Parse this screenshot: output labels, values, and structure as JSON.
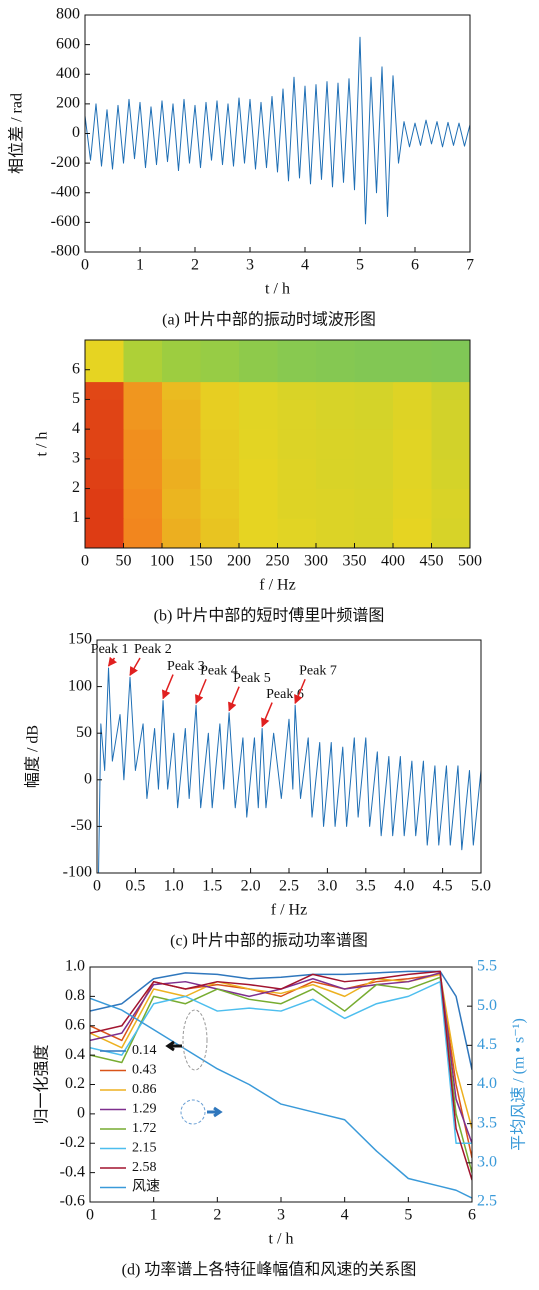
{
  "chart_data": [
    {
      "type": "line",
      "caption": "(a) 叶片中部的振动时域波形图",
      "xlabel": "t / h",
      "ylabel": "相位差 / rad",
      "color": "#1f6fb5",
      "x": [
        0,
        0.1,
        0.2,
        0.3,
        0.4,
        0.5,
        0.6,
        0.7,
        0.8,
        0.9,
        1,
        1.1,
        1.2,
        1.3,
        1.4,
        1.5,
        1.6,
        1.7,
        1.8,
        1.9,
        2,
        2.1,
        2.2,
        2.3,
        2.4,
        2.5,
        2.6,
        2.7,
        2.8,
        2.9,
        3,
        3.1,
        3.2,
        3.3,
        3.4,
        3.5,
        3.6,
        3.7,
        3.8,
        3.9,
        4,
        4.1,
        4.2,
        4.3,
        4.4,
        4.5,
        4.6,
        4.7,
        4.8,
        4.9,
        5,
        5.1,
        5.2,
        5.3,
        5.4,
        5.5,
        5.6,
        5.7,
        5.8,
        5.9,
        6,
        6.1,
        6.2,
        6.3,
        6.4,
        6.5,
        6.6,
        6.7,
        6.8,
        6.9,
        7
      ],
      "values": [
        120,
        -180,
        200,
        -220,
        160,
        -240,
        190,
        -200,
        230,
        -170,
        210,
        -230,
        180,
        -210,
        220,
        -190,
        200,
        -250,
        230,
        -200,
        190,
        -230,
        210,
        -180,
        220,
        -210,
        200,
        -220,
        240,
        -200,
        230,
        -240,
        210,
        -230,
        250,
        -260,
        300,
        -320,
        380,
        -300,
        320,
        -340,
        330,
        -310,
        350,
        -360,
        340,
        -330,
        370,
        -380,
        650,
        -610,
        380,
        -400,
        450,
        -560,
        390,
        -200,
        80,
        -90,
        70,
        -80,
        90,
        -70,
        80,
        -90,
        75,
        -80,
        70,
        -85,
        60
      ],
      "xlim": [
        0,
        7
      ],
      "ylim": [
        -800,
        800
      ],
      "xticks": [
        0,
        1,
        2,
        3,
        4,
        5,
        6,
        7
      ],
      "yticks": [
        -800,
        -600,
        -400,
        -200,
        0,
        200,
        400,
        600,
        800
      ]
    },
    {
      "type": "heatmap",
      "caption": "(b) 叶片中部的短时傅里叶频谱图",
      "xlabel": "f / Hz",
      "ylabel": "t / h",
      "xbins": [
        0,
        50,
        100,
        150,
        200,
        250,
        300,
        350,
        400,
        450,
        500
      ],
      "ybins": [
        0,
        1,
        2,
        3,
        4,
        5,
        5.6,
        7
      ],
      "z": [
        [
          0.95,
          0.75,
          0.62,
          0.55,
          0.5,
          0.48,
          0.46,
          0.45,
          0.5,
          0.44
        ],
        [
          0.95,
          0.74,
          0.6,
          0.54,
          0.5,
          0.47,
          0.46,
          0.45,
          0.49,
          0.45
        ],
        [
          0.94,
          0.72,
          0.62,
          0.53,
          0.5,
          0.47,
          0.45,
          0.44,
          0.48,
          0.43
        ],
        [
          0.93,
          0.72,
          0.6,
          0.53,
          0.49,
          0.46,
          0.45,
          0.44,
          0.48,
          0.42
        ],
        [
          0.93,
          0.7,
          0.6,
          0.52,
          0.48,
          0.46,
          0.44,
          0.43,
          0.47,
          0.42
        ],
        [
          0.92,
          0.7,
          0.58,
          0.52,
          0.48,
          0.45,
          0.44,
          0.43,
          0.47,
          0.41
        ],
        [
          0.5,
          0.28,
          0.22,
          0.2,
          0.17,
          0.15,
          0.14,
          0.13,
          0.13,
          0.12
        ]
      ],
      "colormap": [
        "#5cbf70",
        "#a6cf3a",
        "#e6d422",
        "#f2861e",
        "#d92a12"
      ],
      "xlim": [
        0,
        500
      ],
      "ylim": [
        0,
        7
      ],
      "xticks": [
        0,
        50,
        100,
        150,
        200,
        250,
        300,
        350,
        400,
        450,
        500
      ],
      "yticks": [
        1,
        2,
        3,
        4,
        5,
        6
      ]
    },
    {
      "type": "line",
      "caption": "(c) 叶片中部的振动功率谱图",
      "xlabel": "f / Hz",
      "ylabel": "幅度 / dB",
      "color": "#1f6fb5",
      "x": [
        0.02,
        0.05,
        0.1,
        0.15,
        0.2,
        0.3,
        0.35,
        0.43,
        0.5,
        0.6,
        0.65,
        0.75,
        0.8,
        0.86,
        0.92,
        1,
        1.05,
        1.15,
        1.2,
        1.29,
        1.35,
        1.45,
        1.5,
        1.6,
        1.65,
        1.72,
        1.8,
        1.9,
        1.95,
        2.05,
        2.1,
        2.15,
        2.2,
        2.3,
        2.4,
        2.5,
        2.55,
        2.58,
        2.65,
        2.75,
        2.8,
        2.9,
        2.95,
        3.05,
        3.1,
        3.2,
        3.25,
        3.35,
        3.4,
        3.5,
        3.55,
        3.65,
        3.7,
        3.8,
        3.85,
        3.95,
        4,
        4.1,
        4.15,
        4.25,
        4.3,
        4.4,
        4.45,
        4.55,
        4.6,
        4.7,
        4.75,
        4.85,
        4.9,
        5
      ],
      "values": [
        -100,
        60,
        10,
        120,
        20,
        70,
        0,
        110,
        10,
        60,
        -20,
        55,
        -10,
        85,
        -10,
        50,
        -30,
        55,
        -20,
        80,
        -30,
        50,
        -30,
        60,
        -10,
        72,
        -30,
        45,
        -40,
        45,
        -30,
        55,
        -30,
        50,
        -20,
        65,
        -10,
        80,
        -20,
        45,
        -40,
        40,
        -50,
        40,
        -50,
        35,
        -50,
        45,
        -40,
        45,
        -50,
        30,
        -60,
        25,
        -60,
        25,
        -60,
        20,
        -60,
        20,
        -70,
        15,
        -70,
        15,
        -70,
        15,
        -75,
        10,
        -70,
        10
      ],
      "annotations": [
        {
          "text": "Peak 1",
          "x": 0.15,
          "y": 120
        },
        {
          "text": "Peak 2",
          "x": 0.43,
          "y": 110
        },
        {
          "text": "Peak 3",
          "x": 0.86,
          "y": 85
        },
        {
          "text": "Peak 4",
          "x": 1.29,
          "y": 80
        },
        {
          "text": "Peak 5",
          "x": 1.72,
          "y": 72
        },
        {
          "text": "Peak 6",
          "x": 2.15,
          "y": 55
        },
        {
          "text": "Peak 7",
          "x": 2.58,
          "y": 80
        }
      ],
      "annotation_color": "#e02020",
      "xlim": [
        0,
        5
      ],
      "ylim": [
        -100,
        150
      ],
      "xticks": [
        0,
        0.5,
        {
          "value": 1,
          "label": "1.0"
        },
        1.5,
        {
          "value": 2,
          "label": "2.0"
        },
        2.5,
        {
          "value": 3,
          "label": "3.0"
        },
        3.5,
        {
          "value": 4,
          "label": "4.0"
        },
        4.5,
        {
          "value": 5,
          "label": "5.0"
        }
      ],
      "yticks": [
        -100,
        -50,
        0,
        50,
        100,
        150
      ]
    },
    {
      "type": "line",
      "caption": "(d) 功率谱上各特征峰幅值和风速的关系图",
      "xlabel": "t / h",
      "ylabel": "归一化强度",
      "y2label": "平均风速 / (m • s⁻¹)",
      "x": [
        0,
        0.5,
        1,
        1.5,
        2,
        2.5,
        3,
        3.5,
        4,
        4.5,
        5,
        5.5,
        5.75,
        6
      ],
      "series": [
        {
          "name": "0.14",
          "color": "#2f77bd",
          "values": [
            0.7,
            0.75,
            0.92,
            0.96,
            0.95,
            0.92,
            0.93,
            0.95,
            0.95,
            0.96,
            0.97,
            0.97,
            0.8,
            0.3
          ]
        },
        {
          "name": "0.43",
          "color": "#d95319",
          "values": [
            0.6,
            0.5,
            0.9,
            0.85,
            0.88,
            0.85,
            0.8,
            0.9,
            0.85,
            0.9,
            0.92,
            0.95,
            0.2,
            -0.3
          ]
        },
        {
          "name": "0.86",
          "color": "#edb120",
          "values": [
            0.55,
            0.45,
            0.85,
            0.8,
            0.9,
            0.85,
            0.82,
            0.88,
            0.8,
            0.92,
            0.9,
            0.95,
            0.3,
            -0.1
          ]
        },
        {
          "name": "1.29",
          "color": "#7e2f8e",
          "values": [
            0.5,
            0.55,
            0.88,
            0.9,
            0.85,
            0.8,
            0.85,
            0.92,
            0.85,
            0.88,
            0.9,
            0.96,
            0.1,
            -0.2
          ]
        },
        {
          "name": "1.72",
          "color": "#77ac30",
          "values": [
            0.4,
            0.35,
            0.8,
            0.75,
            0.85,
            0.78,
            0.75,
            0.85,
            0.7,
            0.88,
            0.85,
            0.93,
            0,
            -0.4
          ]
        },
        {
          "name": "2.15",
          "color": "#4dbeee",
          "values": [
            0.45,
            0.4,
            0.75,
            0.8,
            0.7,
            0.72,
            0.7,
            0.78,
            0.65,
            0.75,
            0.8,
            0.9,
            -0.2,
            -0.2
          ]
        },
        {
          "name": "2.58",
          "color": "#a2142f",
          "values": [
            0.55,
            0.6,
            0.9,
            0.85,
            0.9,
            0.88,
            0.85,
            0.95,
            0.9,
            0.92,
            0.95,
            0.97,
            -0.1,
            -0.45
          ]
        },
        {
          "name": "风速",
          "color": "#3a9ad9",
          "axis": "y2",
          "values": [
            5.1,
            4.95,
            4.7,
            4.45,
            4.2,
            4,
            3.75,
            3.65,
            3.55,
            3.15,
            2.8,
            2.7,
            2.65,
            2.55
          ]
        }
      ],
      "legend": "lower left",
      "xlim": [
        0,
        6
      ],
      "ylim": [
        -0.6,
        1
      ],
      "y2lim": [
        2.5,
        5.5
      ],
      "xticks": [
        0,
        1,
        2,
        3,
        4,
        5,
        6
      ],
      "yticks": [
        -0.6,
        -0.4,
        -0.2,
        0,
        0.2,
        0.4,
        0.6,
        0.8,
        {
          "value": 1,
          "label": "1.0"
        }
      ],
      "y2ticks": [
        2.5,
        {
          "value": 3,
          "label": "3.0"
        },
        3.5,
        {
          "value": 4,
          "label": "4.0"
        },
        4.5,
        {
          "value": 5,
          "label": "5.0"
        },
        5.5
      ]
    }
  ]
}
